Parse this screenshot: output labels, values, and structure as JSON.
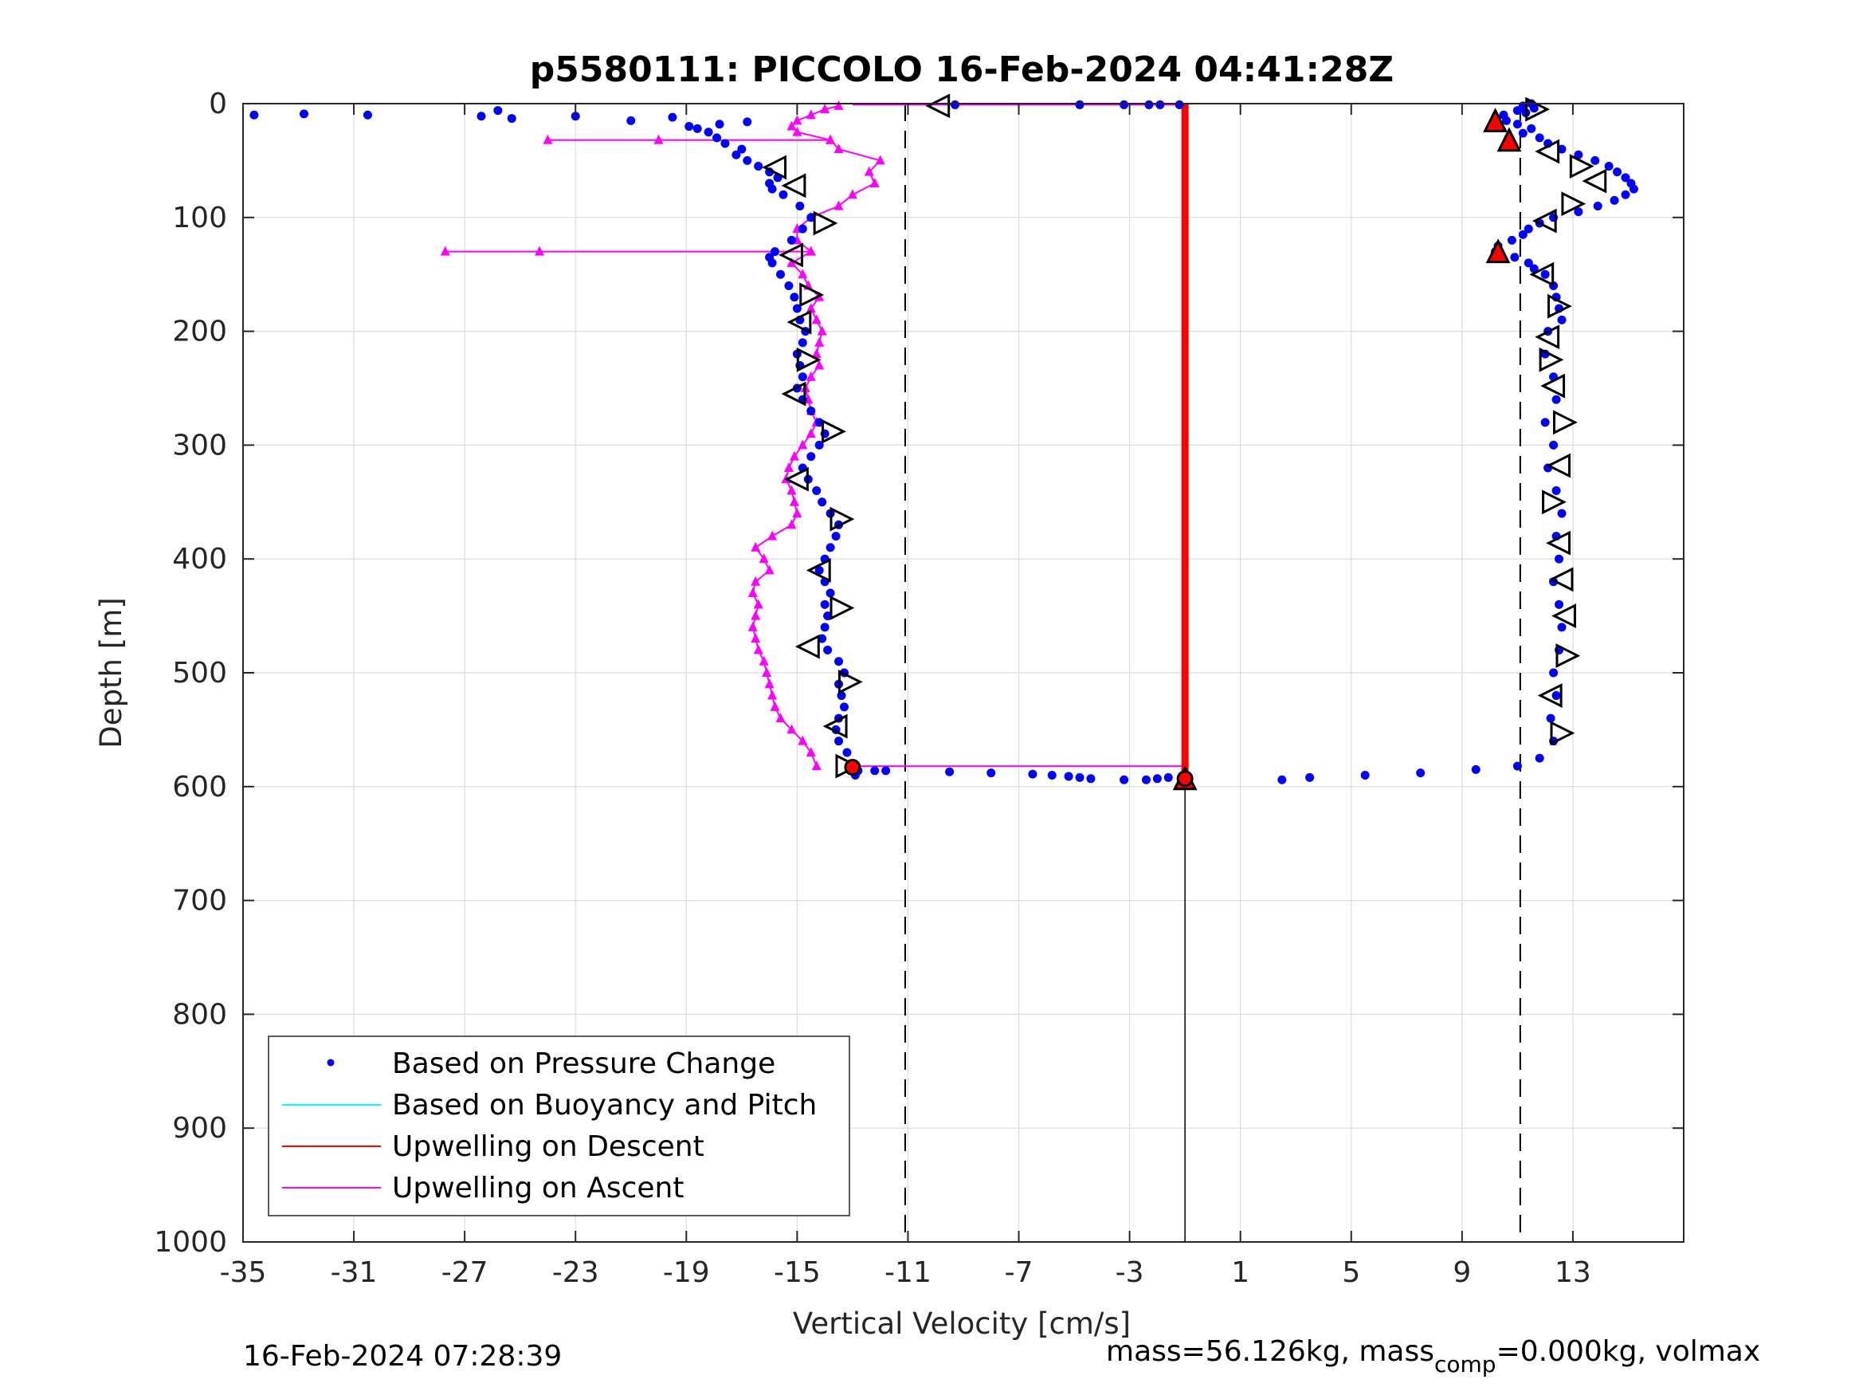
{
  "chart_data": {
    "type": "scatter",
    "title": "p5580111: PICCOLO 16-Feb-2024 04:41:28Z",
    "xlabel": "Vertical Velocity [cm/s]",
    "ylabel": "Depth [m]",
    "xlim": [
      -35,
      17
    ],
    "ylim": [
      0,
      1000
    ],
    "y_reversed": true,
    "grid": true,
    "xticks": [
      -35,
      -31,
      -27,
      -23,
      -19,
      -15,
      -11,
      -7,
      -3,
      1,
      5,
      9,
      13
    ],
    "yticks": [
      0,
      100,
      200,
      300,
      400,
      500,
      600,
      700,
      800,
      900,
      1000
    ],
    "xtick_labels": [
      "-35",
      "-31",
      "-27",
      "-23",
      "-19",
      "-15",
      "-11",
      "-7",
      "-3",
      "1",
      "5",
      "9",
      "13"
    ],
    "ytick_labels": [
      "0",
      "100",
      "200",
      "300",
      "400",
      "500",
      "600",
      "700",
      "800",
      "900",
      "1000"
    ],
    "reference_lines": {
      "dashed_x": [
        -11.1,
        11.1
      ],
      "solid_x": [
        -1
      ]
    },
    "legend": {
      "placement": "bottom-left",
      "entries": [
        {
          "label": "Based on Pressure Change",
          "color": "#0000ff",
          "marker": "dot"
        },
        {
          "label": "Based on Buoyancy and Pitch",
          "color": "#00ffff",
          "marker": "line"
        },
        {
          "label": "Upwelling on Descent",
          "color": "#ff0000",
          "marker": "line"
        },
        {
          "label": "Upwelling on Ascent",
          "color": "#ff00ff",
          "marker": "line"
        }
      ]
    },
    "series": [
      {
        "name": "Based on Pressure Change",
        "color": "#0000ff",
        "descent_depth": [
          0,
          2,
          4,
          6,
          8,
          10,
          12,
          15,
          18,
          22,
          26,
          30,
          35,
          40,
          45,
          50,
          55,
          60,
          65,
          70,
          75,
          80,
          85,
          90,
          95,
          100,
          105,
          110,
          115,
          120,
          125,
          130,
          135,
          140,
          145,
          150,
          160,
          170,
          180,
          190,
          200,
          220,
          240,
          260,
          280,
          300,
          320,
          340,
          360,
          380,
          400,
          420,
          440,
          460,
          480,
          500,
          520,
          540,
          560,
          575,
          582,
          585,
          588,
          590,
          592,
          594
        ],
        "descent_velocity": [
          11.5,
          11.2,
          11.6,
          11.0,
          11.3,
          10.5,
          10.2,
          10.6,
          11.0,
          11.5,
          11.2,
          11.8,
          12.1,
          12.6,
          13.2,
          13.8,
          14.3,
          14.6,
          14.9,
          15.1,
          15.2,
          14.9,
          14.5,
          13.9,
          13.2,
          12.3,
          11.8,
          11.4,
          11.2,
          10.8,
          10.3,
          10.2,
          10.9,
          11.4,
          11.6,
          12.0,
          12.3,
          12.4,
          12.5,
          12.6,
          12.1,
          12.0,
          12.3,
          12.4,
          12.0,
          12.3,
          12.1,
          12.4,
          12.6,
          12.4,
          12.5,
          12.3,
          12.5,
          12.6,
          12.5,
          12.3,
          12.4,
          12.2,
          12.3,
          11.8,
          11.0,
          9.5,
          7.5,
          5.5,
          3.5,
          2.5
        ],
        "surface_depth": [
          10,
          9,
          10,
          6,
          11,
          13,
          11,
          15,
          12,
          18,
          16
        ],
        "surface_velocity": [
          -34.6,
          -32.8,
          -30.5,
          -25.8,
          -26.4,
          -25.3,
          -23.0,
          -21.0,
          -19.5,
          -17.8,
          -16.8
        ],
        "ascent_depth": [
          590,
          586,
          580,
          570,
          560,
          550,
          540,
          530,
          520,
          510,
          500,
          490,
          480,
          470,
          460,
          450,
          440,
          430,
          420,
          410,
          400,
          390,
          380,
          370,
          360,
          350,
          340,
          330,
          320,
          310,
          300,
          290,
          280,
          270,
          260,
          250,
          240,
          230,
          220,
          210,
          200,
          190,
          180,
          170,
          160,
          150,
          140,
          135,
          130,
          120,
          110,
          100,
          90,
          80,
          75,
          70,
          65,
          60,
          55,
          50,
          45,
          40,
          35,
          30,
          25,
          22,
          20
        ],
        "ascent_velocity": [
          -12.9,
          -12.8,
          -13.0,
          -13.2,
          -13.5,
          -13.6,
          -13.5,
          -13.3,
          -13.4,
          -13.5,
          -13.3,
          -13.5,
          -13.9,
          -14.1,
          -14.0,
          -13.9,
          -14.0,
          -13.8,
          -14.0,
          -14.2,
          -14.0,
          -13.8,
          -13.6,
          -13.5,
          -13.8,
          -14.1,
          -14.3,
          -14.6,
          -14.8,
          -14.5,
          -14.2,
          -14.0,
          -14.2,
          -14.5,
          -14.8,
          -15.0,
          -14.8,
          -14.9,
          -15.0,
          -14.8,
          -14.7,
          -14.9,
          -15.0,
          -15.1,
          -15.3,
          -15.6,
          -15.9,
          -16.0,
          -15.8,
          -15.2,
          -14.8,
          -14.5,
          -14.9,
          -15.5,
          -15.9,
          -16.0,
          -15.7,
          -16.0,
          -16.4,
          -16.8,
          -17.2,
          -17.0,
          -17.6,
          -17.9,
          -18.2,
          -18.6,
          -18.9
        ],
        "bottom_depth": [
          586,
          586,
          587,
          588,
          589,
          590,
          591,
          592,
          593,
          594,
          594,
          593,
          592
        ],
        "bottom_velocity": [
          -12.2,
          -11.8,
          -9.5,
          -8.0,
          -6.5,
          -5.8,
          -5.2,
          -4.8,
          -4.4,
          -3.2,
          -2.4,
          -2.0,
          -1.6
        ],
        "top_depth": [
          1,
          1,
          1,
          1,
          1,
          1
        ],
        "top_velocity": [
          -9.3,
          -4.8,
          -3.2,
          -2.3,
          -1.9,
          -1.2
        ]
      },
      {
        "name": "Upwelling on Descent",
        "color": "#ff0000",
        "depth_range": [
          0,
          594
        ],
        "velocity": -1.0,
        "highlight_points": [
          {
            "depth": 15,
            "velocity": 10.2
          },
          {
            "depth": 32,
            "velocity": 10.7
          },
          {
            "depth": 130,
            "velocity": 10.3
          },
          {
            "depth": 593,
            "velocity": -1.0
          }
        ]
      },
      {
        "name": "Upwelling on Ascent",
        "color": "#ff00ff",
        "depth": [
          582,
          570,
          560,
          550,
          540,
          530,
          520,
          510,
          500,
          490,
          480,
          470,
          460,
          450,
          440,
          430,
          420,
          410,
          400,
          390,
          380,
          370,
          360,
          350,
          340,
          330,
          320,
          310,
          300,
          290,
          280,
          270,
          260,
          250,
          240,
          230,
          220,
          210,
          200,
          190,
          180,
          170,
          160,
          150,
          140,
          130,
          130,
          130,
          130,
          120,
          110,
          100,
          90,
          80,
          70,
          60,
          50,
          40,
          32,
          32,
          32,
          32,
          25,
          20,
          15,
          10,
          5,
          2
        ],
        "velocity": [
          -14.3,
          -14.5,
          -14.8,
          -15.2,
          -15.6,
          -15.8,
          -15.9,
          -16.0,
          -16.1,
          -16.2,
          -16.4,
          -16.5,
          -16.6,
          -16.5,
          -16.4,
          -16.6,
          -16.5,
          -16.0,
          -16.2,
          -16.5,
          -15.9,
          -15.2,
          -15.0,
          -15.1,
          -15.2,
          -15.4,
          -15.3,
          -15.1,
          -14.8,
          -14.5,
          -14.3,
          -14.5,
          -14.6,
          -14.7,
          -14.5,
          -14.2,
          -14.3,
          -14.2,
          -14.1,
          -14.3,
          -14.5,
          -14.2,
          -14.6,
          -14.8,
          -15.2,
          -14.5,
          -24.3,
          -27.7,
          -14.5,
          -15.0,
          -15.0,
          -14.5,
          -13.5,
          -13.0,
          -12.2,
          -12.4,
          -12.0,
          -13.5,
          -13.8,
          -20.0,
          -24.0,
          -13.8,
          -15.0,
          -15.2,
          -15.0,
          -14.5,
          -14.0,
          -13.5
        ],
        "ascent_connector": {
          "from_depth": 582,
          "from_velocity": -13.0,
          "to_velocity": -1.0
        }
      },
      {
        "name": "Based on Buoyancy and Pitch",
        "color": "#00ffff",
        "values": []
      }
    ],
    "markers": {
      "right_triangles": [
        {
          "depth": 5,
          "velocity": 11.7
        },
        {
          "depth": 55,
          "velocity": 13.3
        },
        {
          "depth": 88,
          "velocity": 13.0
        },
        {
          "depth": 178,
          "velocity": 12.5
        },
        {
          "depth": 225,
          "velocity": 12.2
        },
        {
          "depth": 280,
          "velocity": 12.7
        },
        {
          "depth": 350,
          "velocity": 12.3
        },
        {
          "depth": 485,
          "velocity": 12.8
        },
        {
          "depth": 553,
          "velocity": 12.6
        },
        {
          "depth": 105,
          "velocity": -14.0
        },
        {
          "depth": 168,
          "velocity": -14.5
        },
        {
          "depth": 225,
          "velocity": -14.6
        },
        {
          "depth": 288,
          "velocity": -13.7
        },
        {
          "depth": 365,
          "velocity": -13.4
        },
        {
          "depth": 443,
          "velocity": -13.4
        },
        {
          "depth": 508,
          "velocity": -13.1
        },
        {
          "depth": 582,
          "velocity": -13.2
        }
      ],
      "left_triangles": [
        {
          "depth": 2,
          "velocity": -9.9
        },
        {
          "depth": 42,
          "velocity": 12.1
        },
        {
          "depth": 68,
          "velocity": 13.8
        },
        {
          "depth": 103,
          "velocity": 12.0
        },
        {
          "depth": 150,
          "velocity": 11.9
        },
        {
          "depth": 205,
          "velocity": 12.1
        },
        {
          "depth": 248,
          "velocity": 12.3
        },
        {
          "depth": 318,
          "velocity": 12.5
        },
        {
          "depth": 386,
          "velocity": 12.5
        },
        {
          "depth": 418,
          "velocity": 12.6
        },
        {
          "depth": 450,
          "velocity": 12.7
        },
        {
          "depth": 520,
          "velocity": 12.2
        },
        {
          "depth": 56,
          "velocity": -15.8
        },
        {
          "depth": 72,
          "velocity": -15.1
        },
        {
          "depth": 133,
          "velocity": -15.2
        },
        {
          "depth": 192,
          "velocity": -14.9
        },
        {
          "depth": 255,
          "velocity": -15.1
        },
        {
          "depth": 330,
          "velocity": -15.0
        },
        {
          "depth": 410,
          "velocity": -14.2
        },
        {
          "depth": 477,
          "velocity": -14.6
        },
        {
          "depth": 547,
          "velocity": -13.6
        }
      ],
      "up_triangles": [
        {
          "depth": 15,
          "velocity": 10.2
        },
        {
          "depth": 32,
          "velocity": 10.7
        },
        {
          "depth": 130,
          "velocity": 10.3
        },
        {
          "depth": 593,
          "velocity": -1.0
        }
      ],
      "star_points": [
        {
          "depth": 583,
          "velocity": -13.0
        },
        {
          "depth": 593,
          "velocity": -1.0
        }
      ]
    }
  },
  "footer": {
    "timestamp": "16-Feb-2024 07:28:39",
    "mass_prefix": "mass=56.126kg, mass",
    "mass_subscript": "comp",
    "mass_suffix": "=0.000kg, volmax"
  }
}
